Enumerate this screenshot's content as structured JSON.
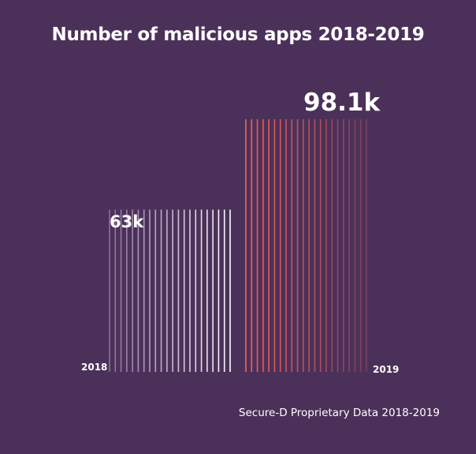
{
  "chart_data": {
    "type": "bar",
    "title": "Number of malicious apps 2018-2019",
    "categories": [
      "2018",
      "2019"
    ],
    "values": [
      63,
      98.1
    ],
    "value_labels": [
      "63k",
      "98.1k"
    ],
    "unit": "k",
    "ylim": [
      0,
      98.1
    ],
    "xlabel": "",
    "ylabel": "",
    "source": "Secure-D Proprietary Data 2018-2019",
    "colors": {
      "background": "#4b3159",
      "bar_2018_light": "#ffffff",
      "bar_2018_dark": "#8a6f9a",
      "bar_2019_light": "#ff6150",
      "bar_2019_dark": "#7a4060"
    }
  }
}
